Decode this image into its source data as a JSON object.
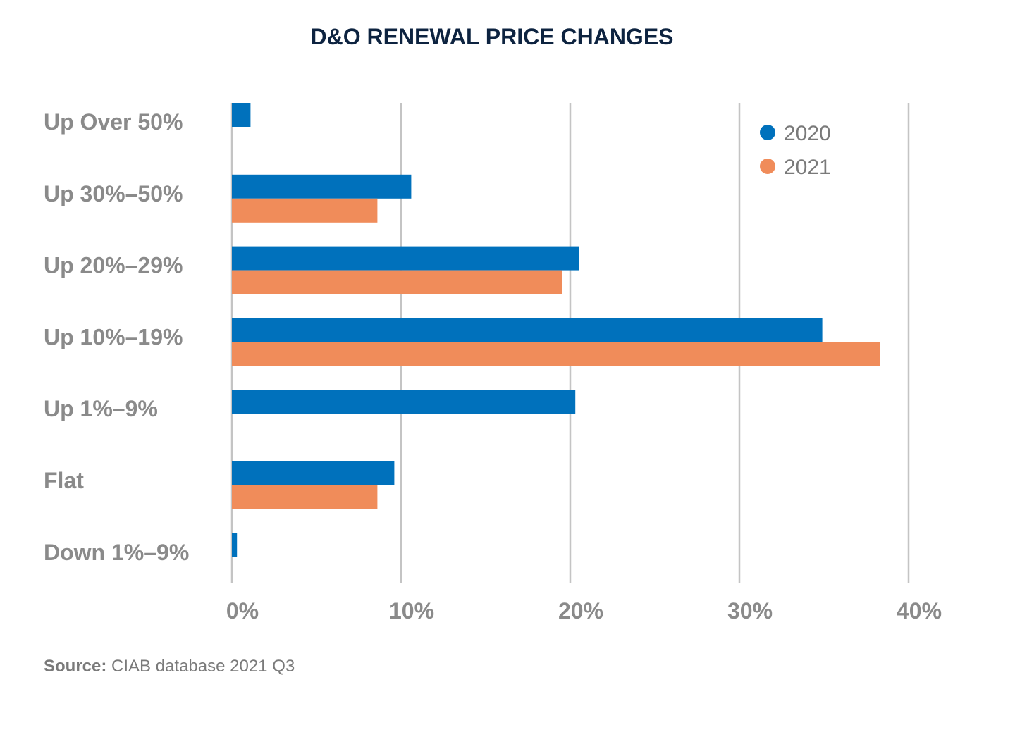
{
  "chart_data": {
    "type": "bar",
    "orientation": "horizontal",
    "title": "D&O RENEWAL PRICE CHANGES",
    "categories": [
      "Up Over 50%",
      "Up 30%–50%",
      "Up 20%–29%",
      "Up 10%–19%",
      "Up 1%–9%",
      "Flat",
      "Down 1%–9%"
    ],
    "series": [
      {
        "name": "2020",
        "color": "#0071bc",
        "values": [
          1.1,
          10.6,
          20.5,
          34.9,
          20.3,
          9.6,
          0.3
        ]
      },
      {
        "name": "2021",
        "color": "#f08c5a",
        "values": [
          0,
          8.6,
          19.5,
          38.3,
          0,
          8.6,
          0
        ]
      }
    ],
    "xlim": [
      0,
      40
    ],
    "xticks": [
      "0%",
      "10%",
      "20%",
      "30%",
      "40%"
    ],
    "xtick_values": [
      0,
      10,
      20,
      30,
      40
    ],
    "grid": "vertical",
    "legend_position": "top-right",
    "xlabel": "",
    "ylabel": ""
  },
  "source": {
    "label": "Source:",
    "text": " CIAB database 2021 Q3"
  }
}
